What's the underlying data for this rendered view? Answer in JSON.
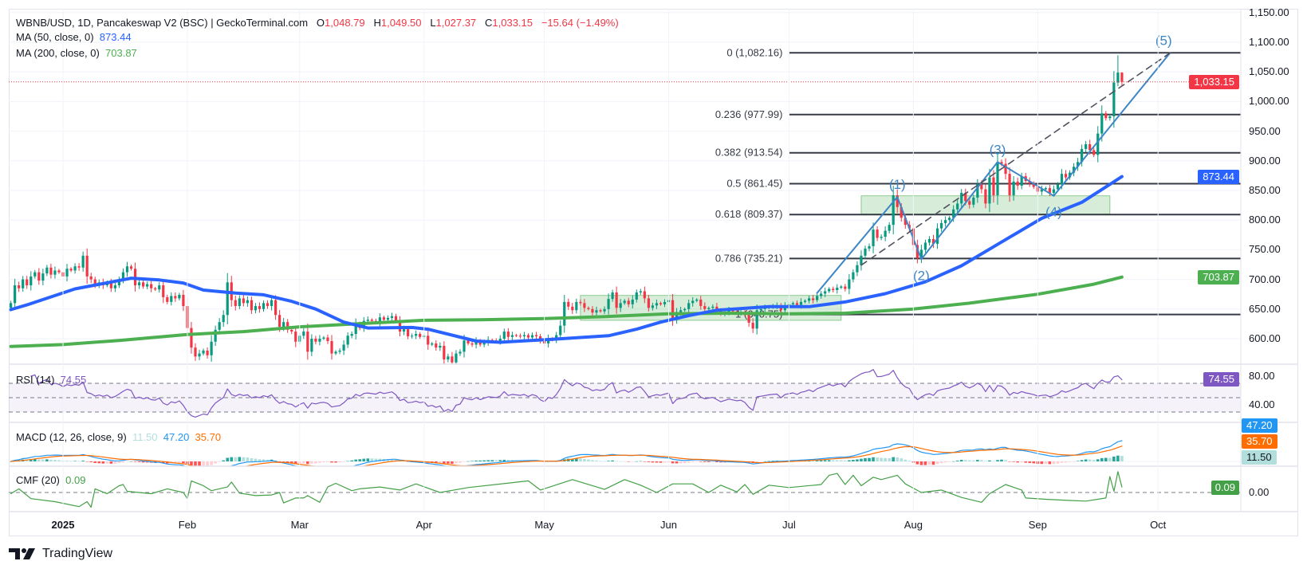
{
  "header": {
    "symbol": "WBNB/USD, 1D, Pancakeswap V2 (BSC) | GeckoTerminal.com",
    "o_label": "O",
    "o": "1,048.79",
    "h_label": "H",
    "h": "1,049.50",
    "l_label": "L",
    "l": "1,027.37",
    "c_label": "C",
    "c": "1,033.15",
    "change": "−15.64 (−1.49%)"
  },
  "ma50": {
    "label": "MA (50, close, 0)",
    "value": "873.44",
    "color": "#2962ff"
  },
  "ma200": {
    "label": "MA (200, close, 0)",
    "value": "703.87",
    "color": "#4caf50"
  },
  "price_axis": [
    {
      "value": 1150,
      "label": "1,150.00"
    },
    {
      "value": 1100,
      "label": "1,100.00"
    },
    {
      "value": 1050,
      "label": "1,050.00"
    },
    {
      "value": 1000,
      "label": "1,000.00"
    },
    {
      "value": 950,
      "label": "950.00"
    },
    {
      "value": 900,
      "label": "900.00"
    },
    {
      "value": 850,
      "label": "850.00"
    },
    {
      "value": 800,
      "label": "800.00"
    },
    {
      "value": 750,
      "label": "750.00"
    },
    {
      "value": 700,
      "label": "700.00"
    },
    {
      "value": 650,
      "label": "650.00"
    },
    {
      "value": 600,
      "label": "600.00"
    }
  ],
  "tags": {
    "last_price": {
      "value": 1033.15,
      "label": "1,033.15",
      "color": "#f23645"
    },
    "ma50": {
      "value": 873.44,
      "label": "873.44",
      "color": "#2962ff"
    },
    "ma200": {
      "value": 703.87,
      "label": "703.87",
      "color": "#4caf50"
    }
  },
  "rsi": {
    "label": "RSI (14)",
    "value": "74.55",
    "color": "#7e57c2",
    "axis": [
      {
        "value": 80,
        "label": "80.00"
      },
      {
        "value": 40,
        "label": "40.00"
      }
    ],
    "bands": [
      70,
      50,
      30
    ]
  },
  "macd": {
    "label": "MACD (12, 26, close, 9)",
    "hist": "11.50",
    "macd": "47.20",
    "signal": "35.70",
    "macd_color": "#2196f3",
    "signal_color": "#ff6d00",
    "hist_color": "#b2dfdb"
  },
  "cmf": {
    "label": "CMF (20)",
    "value": "0.09",
    "axis_label": "0.00",
    "color": "#43a047"
  },
  "time_axis": [
    {
      "label": "2025",
      "date": "2025-01-01",
      "year": true
    },
    {
      "label": "Feb",
      "date": "2025-02-01"
    },
    {
      "label": "Mar",
      "date": "2025-03-01"
    },
    {
      "label": "Apr",
      "date": "2025-04-01"
    },
    {
      "label": "May",
      "date": "2025-05-01"
    },
    {
      "label": "Jun",
      "date": "2025-06-01"
    },
    {
      "label": "Jul",
      "date": "2025-07-01"
    },
    {
      "label": "Aug",
      "date": "2025-08-01"
    },
    {
      "label": "Sep",
      "date": "2025-09-01"
    },
    {
      "label": "Oct",
      "date": "2025-10-01"
    }
  ],
  "logo": {
    "text": "TradingView",
    "mark": "TV"
  },
  "chart_data": {
    "type": "candlestick",
    "title": "WBNB/USD, 1D, Pancakeswap V2 (BSC) | GeckoTerminal.com",
    "ylim": [
      555,
      1160
    ],
    "grid": true,
    "up_color": "#089981",
    "down_color": "#f23645",
    "last_ohlc": {
      "date": "2025-09-22",
      "open": 1048.79,
      "high": 1049.5,
      "low": 1027.37,
      "close": 1033.15
    },
    "closes_by_month": [
      {
        "month": "2024-12",
        "close": [
          660,
          690,
          685,
          700,
          690,
          705,
          712,
          698,
          710,
          720,
          708,
          715,
          712
        ]
      },
      {
        "month": "2025-01",
        "close": [
          705,
          718,
          715,
          722,
          720,
          740,
          705,
          700,
          690,
          695,
          690,
          695,
          685,
          690,
          700,
          712,
          722,
          718,
          690,
          695,
          688,
          692,
          685,
          683,
          690,
          670,
          662,
          672,
          668,
          674,
          655
        ]
      },
      {
        "month": "2025-02",
        "close": [
          618,
          585,
          570,
          575,
          580,
          572,
          595,
          615,
          628,
          640,
          695,
          665,
          655,
          668,
          660,
          665,
          648,
          655,
          650,
          660,
          655,
          665,
          640,
          620,
          628,
          615,
          612,
          595
        ]
      },
      {
        "month": "2025-03",
        "close": [
          605,
          612,
          578,
          600,
          595,
          600,
          602,
          596,
          575,
          578,
          580,
          590,
          605,
          608,
          625,
          618,
          630,
          632,
          630,
          628,
          636,
          632,
          635,
          638,
          630,
          612,
          616,
          604,
          605,
          608,
          603
        ]
      },
      {
        "month": "2025-04",
        "close": [
          605,
          590,
          592,
          585,
          588,
          565,
          570,
          560,
          575,
          578,
          597,
          592,
          590,
          596,
          590,
          594,
          598,
          597,
          596,
          600,
          612,
          603,
          606,
          605,
          604,
          606,
          602,
          606,
          604,
          596
        ]
      },
      {
        "month": "2025-05",
        "close": [
          592,
          600,
          598,
          606,
          622,
          662,
          654,
          648,
          662,
          660,
          652,
          650,
          644,
          648,
          646,
          650,
          667,
          678,
          652,
          660,
          664,
          658,
          666,
          678,
          680,
          668,
          652,
          656,
          660,
          658,
          662
        ]
      },
      {
        "month": "2025-06",
        "close": [
          665,
          632,
          645,
          648,
          650,
          660,
          664,
          666,
          655,
          650,
          652,
          654,
          648,
          642,
          645,
          648,
          646,
          644,
          645,
          640,
          627,
          617,
          648,
          650,
          652,
          654,
          655,
          656,
          648,
          656
        ]
      },
      {
        "month": "2025-07",
        "close": [
          658,
          660,
          657,
          662,
          664,
          668,
          665,
          672,
          676,
          680,
          684,
          682,
          686,
          688,
          684,
          700,
          712,
          724,
          740,
          752,
          756,
          784,
          770,
          772,
          782,
          792,
          842,
          822,
          804,
          792,
          786
        ]
      },
      {
        "month": "2025-08",
        "close": [
          758,
          736,
          750,
          762,
          768,
          760,
          786,
          795,
          800,
          804,
          818,
          828,
          846,
          832,
          826,
          838,
          860,
          852,
          828,
          872,
          842,
          898,
          895,
          878,
          842,
          865,
          858,
          874,
          866,
          862,
          856
        ]
      },
      {
        "month": "2025-09",
        "close": [
          848,
          852,
          854,
          846,
          852,
          860,
          878,
          872,
          880,
          890,
          898,
          920,
          928,
          918,
          910,
          946,
          980,
          972,
          975,
          1032,
          1048.79,
          1033.15
        ]
      }
    ],
    "ma50_series": [
      [
        "2024-12-19",
        649
      ],
      [
        "2024-12-23",
        657
      ],
      [
        "2025-01-04",
        684
      ],
      [
        "2025-01-18",
        702
      ],
      [
        "2025-01-25",
        699
      ],
      [
        "2025-01-31",
        694
      ],
      [
        "2025-02-05",
        682
      ],
      [
        "2025-02-13",
        677
      ],
      [
        "2025-02-20",
        674
      ],
      [
        "2025-02-27",
        663
      ],
      [
        "2025-03-05",
        650
      ],
      [
        "2025-03-12",
        628
      ],
      [
        "2025-03-18",
        618
      ],
      [
        "2025-03-29",
        619
      ],
      [
        "2025-04-02",
        616
      ],
      [
        "2025-04-14",
        596
      ],
      [
        "2025-04-20",
        594
      ],
      [
        "2025-05-03",
        599
      ],
      [
        "2025-05-17",
        605
      ],
      [
        "2025-05-24",
        616
      ],
      [
        "2025-05-30",
        628
      ],
      [
        "2025-06-06",
        639
      ],
      [
        "2025-06-13",
        648
      ],
      [
        "2025-06-26",
        654
      ],
      [
        "2025-07-06",
        654
      ],
      [
        "2025-07-15",
        662
      ],
      [
        "2025-07-25",
        676
      ],
      [
        "2025-08-04",
        696
      ],
      [
        "2025-08-13",
        723
      ],
      [
        "2025-08-23",
        763
      ],
      [
        "2025-09-02",
        803
      ],
      [
        "2025-09-12",
        830
      ],
      [
        "2025-09-22",
        873.44
      ]
    ],
    "ma200_series": [
      [
        "2024-12-19",
        587
      ],
      [
        "2025-01-01",
        590
      ],
      [
        "2025-01-15",
        597
      ],
      [
        "2025-02-01",
        607
      ],
      [
        "2025-02-15",
        612
      ],
      [
        "2025-03-01",
        620
      ],
      [
        "2025-03-15",
        625
      ],
      [
        "2025-04-01",
        631
      ],
      [
        "2025-04-15",
        632
      ],
      [
        "2025-05-01",
        634
      ],
      [
        "2025-05-15",
        637
      ],
      [
        "2025-06-01",
        642
      ],
      [
        "2025-06-15",
        643
      ],
      [
        "2025-07-01",
        642
      ],
      [
        "2025-07-15",
        643
      ],
      [
        "2025-08-01",
        650
      ],
      [
        "2025-08-15",
        660
      ],
      [
        "2025-09-01",
        675
      ],
      [
        "2025-09-15",
        692
      ],
      [
        "2025-09-22",
        703.87
      ]
    ],
    "cmf_series": [
      [
        "2024-12-19",
        -0.02
      ],
      [
        "2024-12-21",
        0.06
      ],
      [
        "2024-12-24",
        -0.1
      ],
      [
        "2024-12-30",
        -0.15
      ],
      [
        "2025-01-05",
        -0.23
      ],
      [
        "2025-01-07",
        -0.15
      ],
      [
        "2025-01-08",
        -0.24
      ],
      [
        "2025-01-09",
        0.06
      ],
      [
        "2025-01-12",
        -0.02
      ],
      [
        "2025-01-15",
        0.11
      ],
      [
        "2025-01-16",
        0.13
      ],
      [
        "2025-01-17",
        0.02
      ],
      [
        "2025-01-23",
        -0.02
      ],
      [
        "2025-01-27",
        0.06
      ],
      [
        "2025-01-31",
        0.0
      ],
      [
        "2025-02-01",
        -0.1
      ],
      [
        "2025-02-02",
        0.19
      ],
      [
        "2025-02-05",
        0.11
      ],
      [
        "2025-02-07",
        0.03
      ],
      [
        "2025-02-11",
        0.09
      ],
      [
        "2025-02-12",
        0.17
      ],
      [
        "2025-02-14",
        -0.01
      ],
      [
        "2025-02-18",
        -0.05
      ],
      [
        "2025-02-22",
        -0.04
      ],
      [
        "2025-02-24",
        0.0
      ],
      [
        "2025-02-25",
        -0.17
      ],
      [
        "2025-02-28",
        -0.09
      ],
      [
        "2025-03-02",
        -0.09
      ],
      [
        "2025-03-03",
        -0.05
      ],
      [
        "2025-03-06",
        -0.16
      ],
      [
        "2025-03-08",
        0.09
      ],
      [
        "2025-03-10",
        0.15
      ],
      [
        "2025-03-14",
        0.03
      ],
      [
        "2025-03-16",
        0.06
      ],
      [
        "2025-03-21",
        0.09
      ],
      [
        "2025-03-26",
        0.04
      ],
      [
        "2025-03-30",
        0.14
      ],
      [
        "2025-04-05",
        0.0
      ],
      [
        "2025-04-12",
        0.08
      ],
      [
        "2025-04-27",
        0.19
      ],
      [
        "2025-04-30",
        0.04
      ],
      [
        "2025-05-08",
        0.21
      ],
      [
        "2025-05-16",
        0.05
      ],
      [
        "2025-05-21",
        0.21
      ],
      [
        "2025-05-25",
        0.12
      ],
      [
        "2025-05-29",
        0.0
      ],
      [
        "2025-06-02",
        0.14
      ],
      [
        "2025-06-07",
        0.14
      ],
      [
        "2025-06-11",
        0.0
      ],
      [
        "2025-06-14",
        0.12
      ],
      [
        "2025-06-18",
        0.01
      ],
      [
        "2025-06-20",
        0.13
      ],
      [
        "2025-06-22",
        -0.03
      ],
      [
        "2025-06-26",
        0.12
      ],
      [
        "2025-07-01",
        0.08
      ],
      [
        "2025-07-09",
        0.13
      ],
      [
        "2025-07-11",
        0.28
      ],
      [
        "2025-07-13",
        0.31
      ],
      [
        "2025-07-15",
        0.13
      ],
      [
        "2025-07-17",
        0.28
      ],
      [
        "2025-07-19",
        0.11
      ],
      [
        "2025-07-22",
        0.25
      ],
      [
        "2025-07-24",
        0.21
      ],
      [
        "2025-07-28",
        0.28
      ],
      [
        "2025-07-30",
        0.14
      ],
      [
        "2025-08-03",
        0.0
      ],
      [
        "2025-08-08",
        0.04
      ],
      [
        "2025-08-13",
        -0.08
      ],
      [
        "2025-08-18",
        -0.16
      ],
      [
        "2025-08-20",
        -0.02
      ],
      [
        "2025-08-24",
        0.13
      ],
      [
        "2025-08-28",
        0.04
      ],
      [
        "2025-08-29",
        -0.09
      ],
      [
        "2025-09-03",
        -0.11
      ],
      [
        "2025-09-09",
        -0.13
      ],
      [
        "2025-09-13",
        -0.14
      ],
      [
        "2025-09-18",
        -0.09
      ],
      [
        "2025-09-19",
        0.26
      ],
      [
        "2025-09-20",
        0.02
      ],
      [
        "2025-09-21",
        0.34
      ],
      [
        "2025-09-22",
        0.09
      ]
    ],
    "fib_levels": [
      {
        "ratio": "0",
        "price": 1082.16,
        "label": "0 (1,082.16)"
      },
      {
        "ratio": "0.236",
        "price": 977.99,
        "label": "0.236 (977.99)"
      },
      {
        "ratio": "0.382",
        "price": 913.54,
        "label": "0.382 (913.54)"
      },
      {
        "ratio": "0.5",
        "price": 861.45,
        "label": "0.5 (861.45)"
      },
      {
        "ratio": "0.618",
        "price": 809.37,
        "label": "0.618 (809.37)"
      },
      {
        "ratio": "0.786",
        "price": 735.21,
        "label": "0.786 (735.21)"
      },
      {
        "ratio": "1",
        "price": 640.75,
        "label": "1 (640.75)"
      }
    ],
    "fib_start_date": "2025-07-01",
    "elliott_waves": {
      "color": "#3d86c6",
      "start": {
        "date": "2025-07-08",
        "price": 677
      },
      "points": [
        {
          "label": "(1)",
          "date": "2025-07-28",
          "price": 839,
          "pos": "above"
        },
        {
          "label": "(2)",
          "date": "2025-08-03",
          "price": 734,
          "pos": "below"
        },
        {
          "label": "(3)",
          "date": "2025-08-22",
          "price": 898,
          "pos": "above"
        },
        {
          "label": "(4)",
          "date": "2025-09-05",
          "price": 841,
          "pos": "below"
        },
        {
          "label": "(5)",
          "date": "2025-10-04",
          "price": 1082,
          "pos": "above"
        }
      ],
      "trendline": [
        {
          "date": "2025-07-19",
          "price": 724
        },
        {
          "date": "2025-10-04",
          "price": 1082
        }
      ]
    },
    "zones": [
      {
        "from": "2025-05-10",
        "to": "2025-07-14",
        "top": 673,
        "bottom": 631
      },
      {
        "from": "2025-07-19",
        "to": "2025-09-19",
        "top": 841,
        "bottom": 810
      }
    ]
  }
}
